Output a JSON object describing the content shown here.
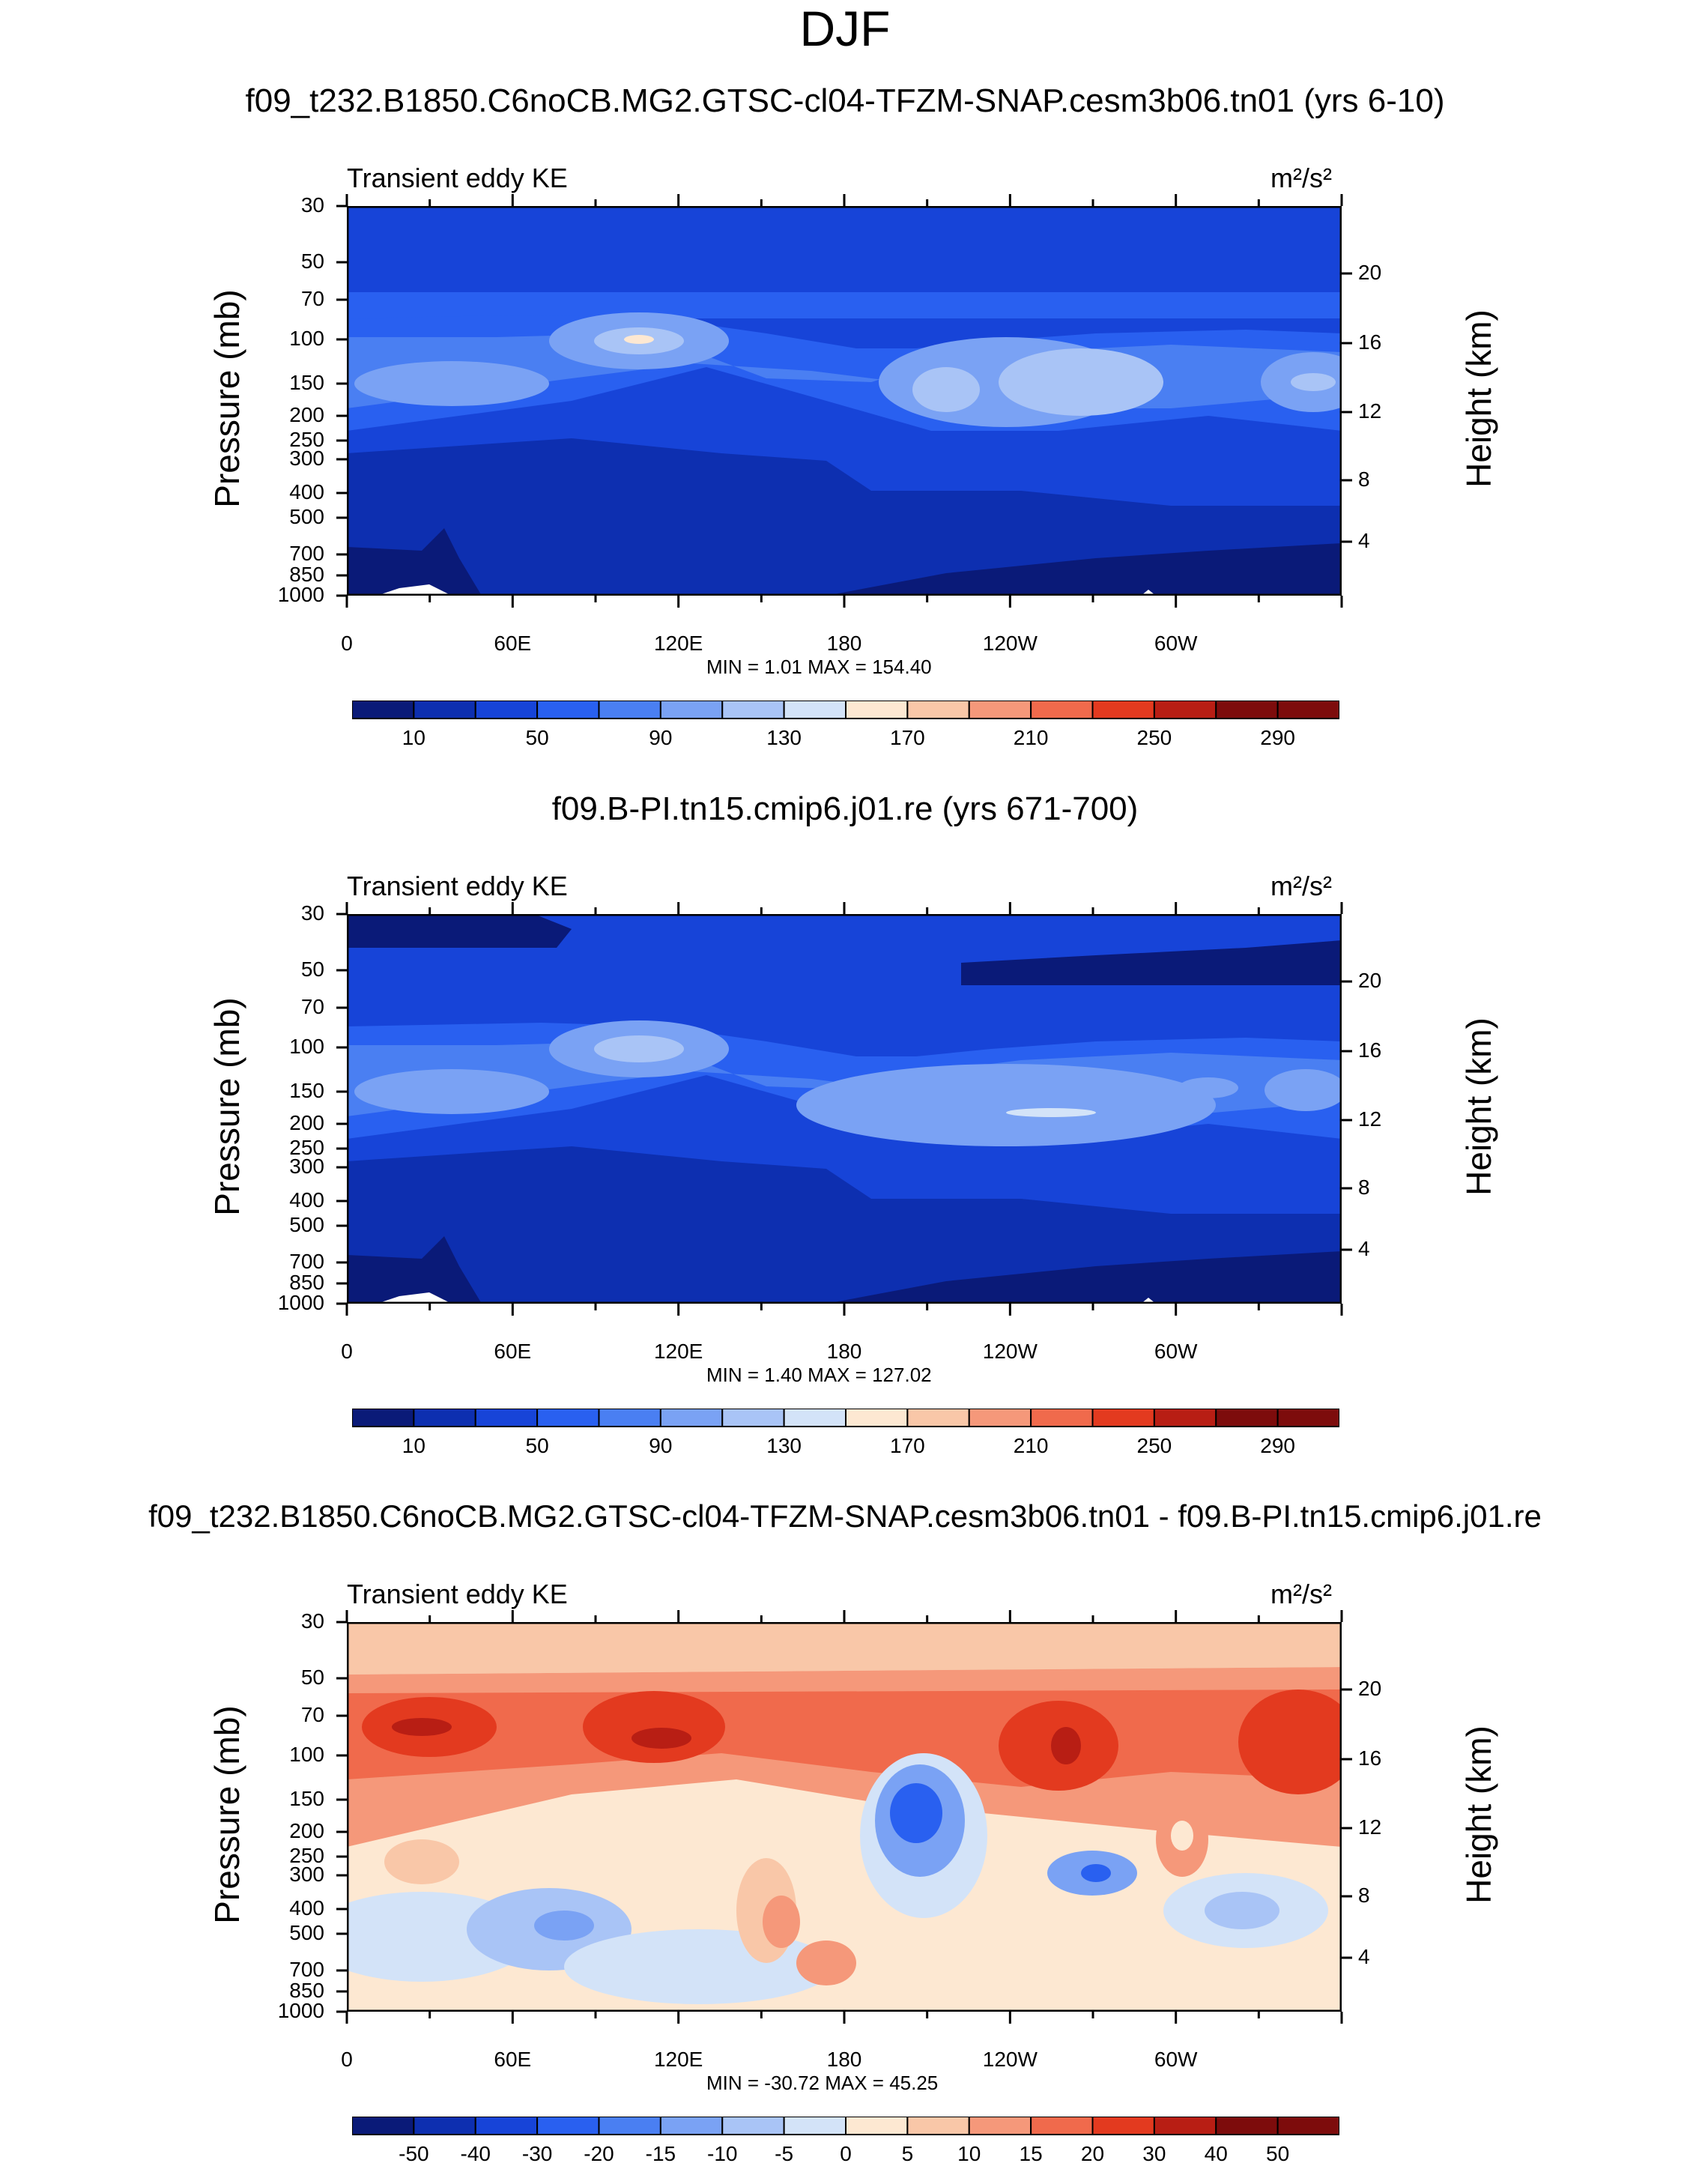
{
  "title": "DJF",
  "colors": {
    "ke_levels": [
      "#0a1a78",
      "#0d2fb0",
      "#1744d8",
      "#2960f0",
      "#4a7ff2",
      "#7aa2f4",
      "#a9c4f6",
      "#d3e3f8",
      "#fde8d2",
      "#f9c7a8",
      "#f5987a",
      "#f06a4c",
      "#e33a1f",
      "#b81e14",
      "#7d0c0c"
    ],
    "diff_levels": [
      "#0a1a78",
      "#0d2fb0",
      "#1744d8",
      "#2960f0",
      "#4a7ff2",
      "#7aa2f4",
      "#a9c4f6",
      "#d3e3f8",
      "#fde8d2",
      "#f9c7a8",
      "#f5987a",
      "#f06a4c",
      "#e33a1f",
      "#b81e14",
      "#7d0c0c"
    ],
    "white": "#ffffff"
  },
  "chart_data": [
    {
      "type": "heatmap",
      "title": "f09_t232.B1850.C6noCB.MG2.GTSC-cl04-TFZM-SNAP.cesm3b06.tn01 (yrs 6-10)",
      "label": "Transient eddy KE",
      "units": "m²/s²",
      "xlabel": "",
      "ylabel": "Pressure (mb)",
      "ylabel_right": "Height (km)",
      "xticks": [
        "0",
        "60E",
        "120E",
        "180",
        "120W",
        "60W"
      ],
      "yticks": [
        "30",
        "50",
        "70",
        "100",
        "150",
        "200",
        "250",
        "300",
        "400",
        "500",
        "700",
        "850",
        "1000"
      ],
      "yticks_right": [
        "20",
        "16",
        "12",
        "8",
        "4"
      ],
      "min_label": "MIN =   1.01  MAX = 154.40",
      "min": 1.01,
      "max": 154.4,
      "colorbar_labels": [
        "10",
        "50",
        "90",
        "130",
        "170",
        "210",
        "250",
        "290"
      ]
    },
    {
      "type": "heatmap",
      "title": "f09.B-PI.tn15.cmip6.j01.re (yrs 671-700)",
      "label": "Transient eddy KE",
      "units": "m²/s²",
      "xlabel": "",
      "ylabel": "Pressure (mb)",
      "ylabel_right": "Height (km)",
      "xticks": [
        "0",
        "60E",
        "120E",
        "180",
        "120W",
        "60W"
      ],
      "yticks": [
        "30",
        "50",
        "70",
        "100",
        "150",
        "200",
        "250",
        "300",
        "400",
        "500",
        "700",
        "850",
        "1000"
      ],
      "yticks_right": [
        "20",
        "16",
        "12",
        "8",
        "4"
      ],
      "min_label": "MIN =   1.40  MAX = 127.02",
      "min": 1.4,
      "max": 127.02,
      "colorbar_labels": [
        "10",
        "50",
        "90",
        "130",
        "170",
        "210",
        "250",
        "290"
      ]
    },
    {
      "type": "heatmap",
      "title": "f09_t232.B1850.C6noCB.MG2.GTSC-cl04-TFZM-SNAP.cesm3b06.tn01 - f09.B-PI.tn15.cmip6.j01.re",
      "label": "Transient eddy KE",
      "units": "m²/s²",
      "xlabel": "",
      "ylabel": "Pressure (mb)",
      "ylabel_right": "Height (km)",
      "xticks": [
        "0",
        "60E",
        "120E",
        "180",
        "120W",
        "60W"
      ],
      "yticks": [
        "30",
        "50",
        "70",
        "100",
        "150",
        "200",
        "250",
        "300",
        "400",
        "500",
        "700",
        "850",
        "1000"
      ],
      "yticks_right": [
        "20",
        "16",
        "12",
        "8",
        "4"
      ],
      "min_label": "MIN = -30.72  MAX =  45.25",
      "min": -30.72,
      "max": 45.25,
      "colorbar_labels": [
        "-50",
        "-40",
        "-30",
        "-20",
        "-15",
        "-10",
        "-5",
        "0",
        "5",
        "10",
        "15",
        "20",
        "30",
        "40",
        "50"
      ]
    }
  ]
}
